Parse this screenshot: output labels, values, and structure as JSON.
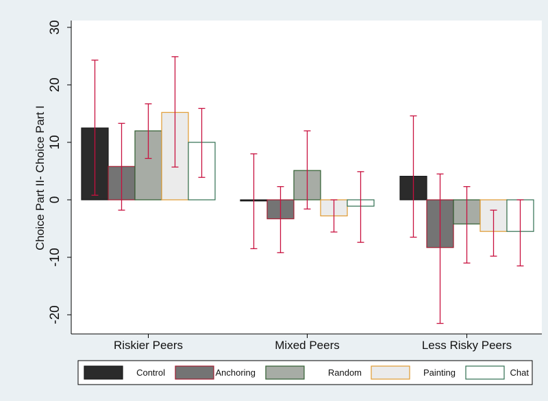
{
  "chart_data": {
    "type": "bar",
    "ylabel": "Choice Part II- Choice Part I",
    "xlabel": "",
    "ylim": [
      -23,
      32
    ],
    "yticks": [
      -20,
      -10,
      0,
      10,
      20,
      30
    ],
    "grid": false,
    "legend_position": "bottom",
    "categories": [
      "Riskier Peers",
      "Mixed Peers",
      "Less Risky Peers"
    ],
    "series": [
      {
        "name": "Control",
        "fill": "#2b2b2b",
        "stroke": "#1a1a1a",
        "values": [
          12.5,
          -0.2,
          4.1
        ],
        "error_low": [
          0.8,
          -8.5,
          -6.5
        ],
        "error_high": [
          24.3,
          8.0,
          14.6
        ]
      },
      {
        "name": "Anchoring",
        "fill": "#747474",
        "stroke": "#a11a2e",
        "values": [
          5.8,
          -3.3,
          -8.3
        ],
        "error_low": [
          -1.8,
          -9.2,
          -21.5
        ],
        "error_high": [
          13.3,
          2.3,
          4.5
        ]
      },
      {
        "name": "Random",
        "fill": "#a7aca5",
        "stroke": "#2f5d2f",
        "values": [
          12.0,
          5.1,
          -4.2
        ],
        "error_low": [
          7.2,
          -1.6,
          -11.0
        ],
        "error_high": [
          16.7,
          12.0,
          2.3
        ]
      },
      {
        "name": "Painting",
        "fill": "#ebebeb",
        "stroke": "#e09a30",
        "values": [
          15.2,
          -2.8,
          -5.5
        ],
        "error_low": [
          5.7,
          -5.6,
          -9.8
        ],
        "error_high": [
          24.9,
          0.0,
          -1.8
        ]
      },
      {
        "name": "Chat",
        "fill": "#ffffff",
        "stroke": "#2f6d4f",
        "values": [
          10.0,
          -1.1,
          -5.5
        ],
        "error_low": [
          3.9,
          -7.4,
          -11.5
        ],
        "error_high": [
          15.9,
          4.9,
          0.0
        ]
      }
    ],
    "error_bar_color": "#c8103e"
  }
}
